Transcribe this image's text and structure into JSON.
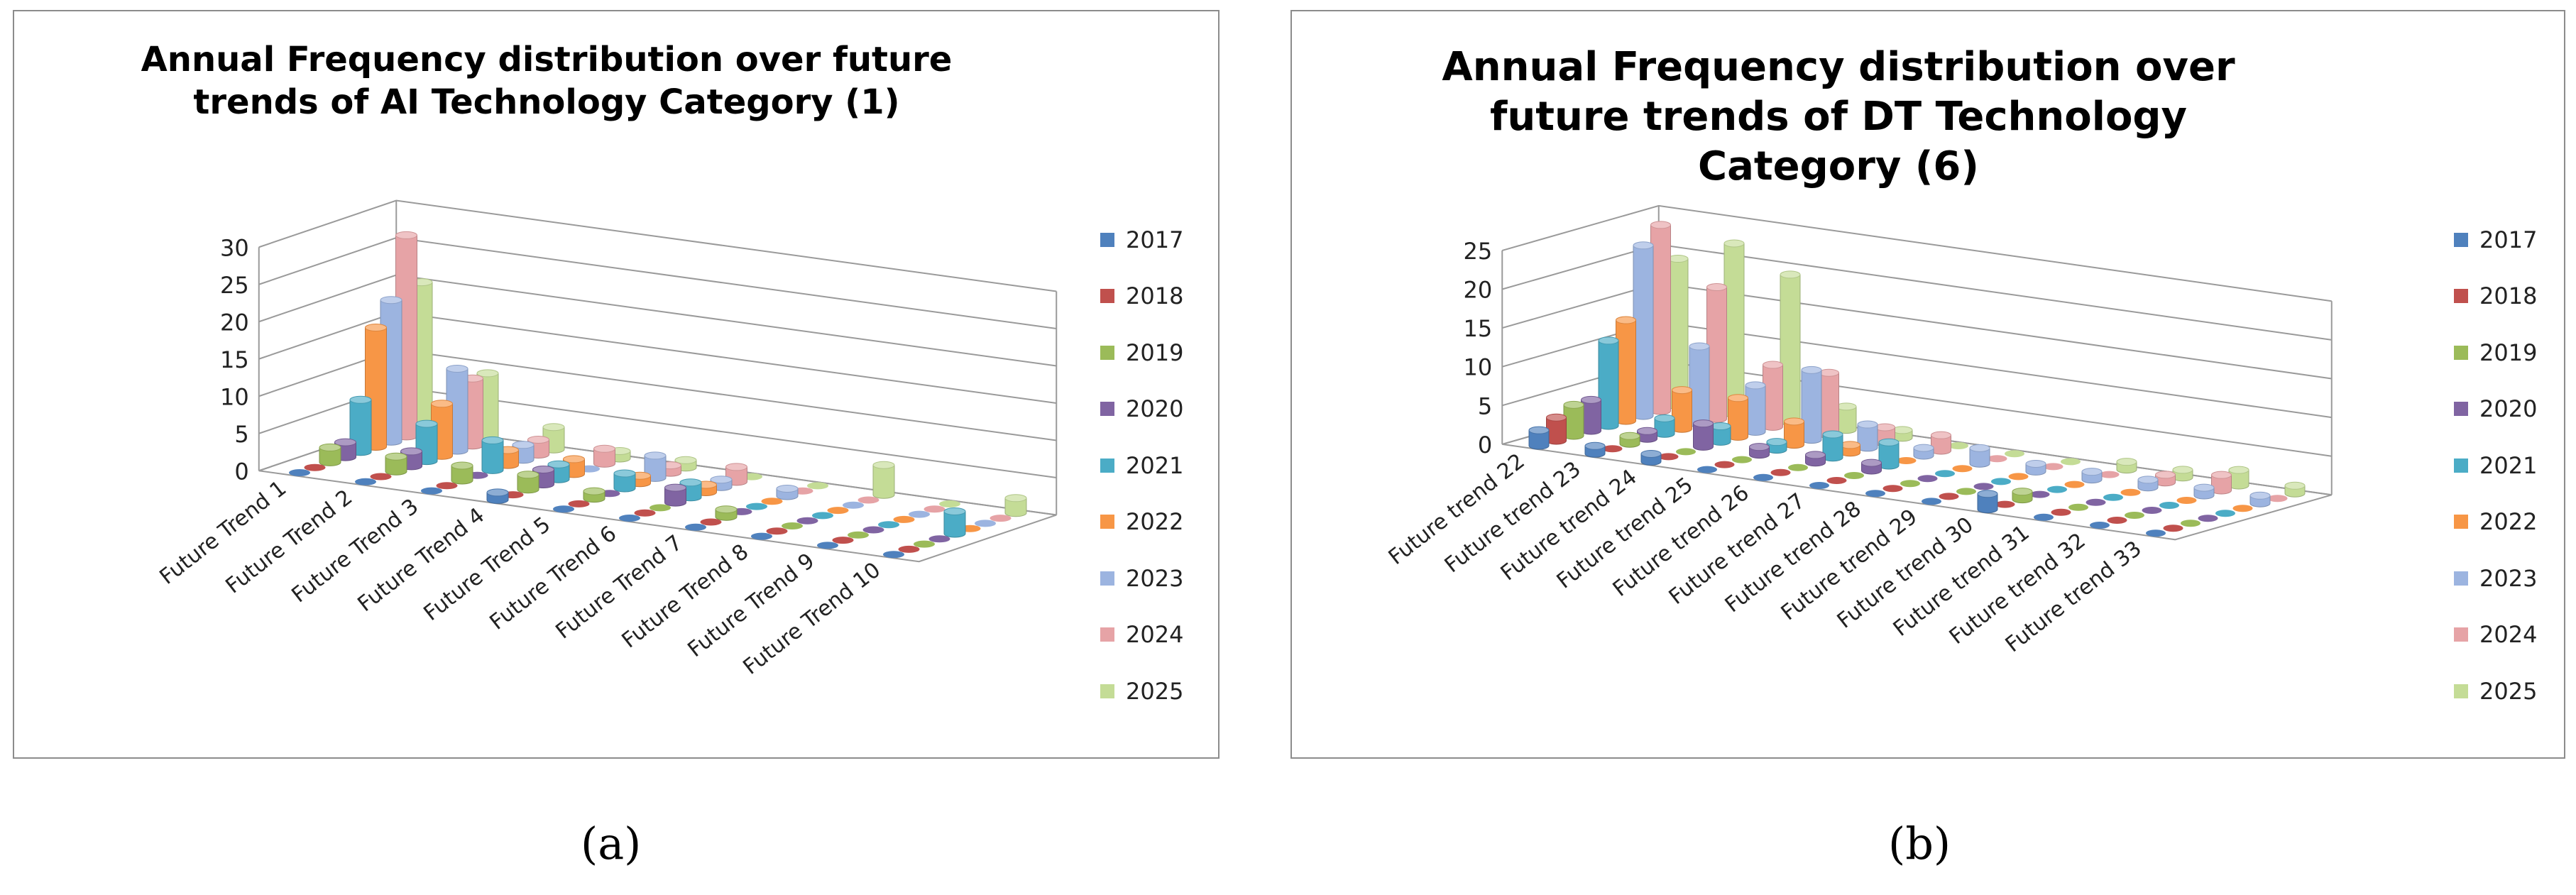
{
  "captions": {
    "a": "(a)",
    "b": "(b)"
  },
  "colors": [
    "#4f81bd",
    "#c0504d",
    "#9bbb59",
    "#8064a2",
    "#4bacc6",
    "#f79646",
    "#9cb4e0",
    "#e6a3a6",
    "#c4dc96"
  ],
  "chart_data": [
    {
      "type": "bar3d",
      "title": "Annual Frequency distribution over future trends of AI Technology Category (1)",
      "categories": [
        "Future Trend 1",
        "Future Trend 2",
        "Future Trend 3",
        "Future Trend 4",
        "Future Trend 5",
        "Future Trend 6",
        "Future Trend 7",
        "Future Trend 8",
        "Future Trend 9",
        "Future Trend 10"
      ],
      "ylim": [
        0,
        30
      ],
      "yticks": [
        "0",
        "5",
        "10",
        "15",
        "20",
        "25",
        "30"
      ],
      "legend_position": "right",
      "series": [
        {
          "name": "2017",
          "values": [
            0,
            0,
            0,
            1,
            0,
            0,
            0,
            0,
            0,
            0
          ]
        },
        {
          "name": "2018",
          "values": [
            0,
            0,
            0,
            0,
            0,
            0,
            0,
            0,
            0,
            0
          ]
        },
        {
          "name": "2019",
          "values": [
            2,
            2,
            2,
            2,
            1,
            0,
            1,
            0,
            0,
            0
          ]
        },
        {
          "name": "2020",
          "values": [
            2,
            2,
            0,
            2,
            0,
            2,
            0,
            0,
            0,
            0
          ]
        },
        {
          "name": "2021",
          "values": [
            7,
            5,
            4,
            2,
            2,
            2,
            0,
            0,
            0,
            3
          ]
        },
        {
          "name": "2022",
          "values": [
            16,
            7,
            2,
            2,
            1,
            1,
            0,
            0,
            0,
            0
          ]
        },
        {
          "name": "2023",
          "values": [
            19,
            11,
            2,
            0,
            3,
            1,
            1,
            0,
            0,
            0
          ]
        },
        {
          "name": "2024",
          "values": [
            27,
            9,
            2,
            2,
            1,
            2,
            0,
            0,
            0,
            0
          ]
        },
        {
          "name": "2025",
          "values": [
            20,
            9,
            3,
            1,
            1,
            0,
            0,
            4,
            0,
            2
          ]
        }
      ]
    },
    {
      "type": "bar3d",
      "title": "Annual Frequency distribution over future trends of DT Technology Category (6)",
      "categories": [
        "Future trend 22",
        "Future trend 23",
        "Future trend 24",
        "Future trend 25",
        "Future trend 26",
        "Future trend 27",
        "Future trend 28",
        "Future trend 29",
        "Future trend 30",
        "Future trend 31",
        "Future trend 32",
        "Future trend 33"
      ],
      "ylim": [
        0,
        25
      ],
      "yticks": [
        "0",
        "5",
        "10",
        "15",
        "20",
        "25"
      ],
      "legend_position": "right",
      "series": [
        {
          "name": "2017",
          "values": [
            2,
            1,
            1,
            0,
            0,
            0,
            0,
            0,
            2,
            0,
            0,
            0
          ]
        },
        {
          "name": "2018",
          "values": [
            3,
            0,
            0,
            0,
            0,
            0,
            0,
            0,
            0,
            0,
            0,
            0
          ]
        },
        {
          "name": "2019",
          "values": [
            4,
            1,
            0,
            0,
            0,
            0,
            0,
            0,
            1,
            0,
            0,
            0
          ]
        },
        {
          "name": "2020",
          "values": [
            4,
            1,
            3,
            1,
            1,
            1,
            0,
            0,
            0,
            0,
            0,
            0
          ]
        },
        {
          "name": "2021",
          "values": [
            11,
            2,
            2,
            1,
            3,
            3,
            0,
            0,
            0,
            0,
            0,
            0
          ]
        },
        {
          "name": "2022",
          "values": [
            13,
            5,
            5,
            3,
            1,
            0,
            0,
            0,
            0,
            0,
            0,
            0
          ]
        },
        {
          "name": "2023",
          "values": [
            22,
            10,
            6,
            9,
            3,
            1,
            2,
            1,
            1,
            1,
            1,
            1
          ]
        },
        {
          "name": "2024",
          "values": [
            24,
            17,
            8,
            8,
            2,
            2,
            0,
            0,
            0,
            1,
            2,
            0
          ]
        },
        {
          "name": "2025",
          "values": [
            19,
            22,
            19,
            3,
            1,
            0,
            0,
            0,
            1,
            1,
            2,
            1
          ]
        }
      ]
    }
  ]
}
